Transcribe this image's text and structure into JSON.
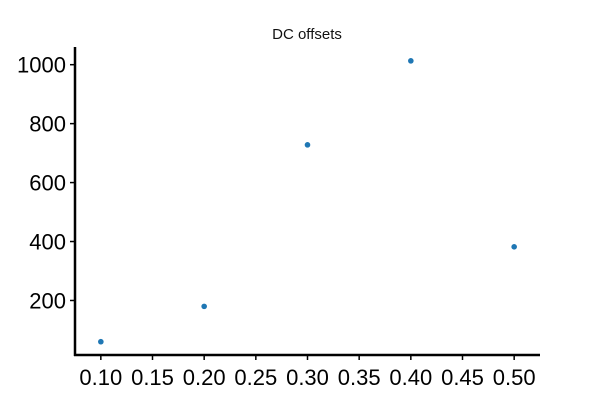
{
  "chart_data": {
    "type": "scatter",
    "title": "DC offsets",
    "xlabel": "",
    "ylabel": "",
    "x": [
      0.1,
      0.2,
      0.3,
      0.4,
      0.5
    ],
    "y": [
      60,
      180,
      728,
      1013,
      382
    ],
    "xlim": [
      0.075,
      0.525
    ],
    "ylim": [
      15,
      1060
    ],
    "xticks": [
      0.1,
      0.15,
      0.2,
      0.25,
      0.3,
      0.35,
      0.4,
      0.45,
      0.5
    ],
    "xtick_labels": [
      "0.10",
      "0.15",
      "0.20",
      "0.25",
      "0.30",
      "0.35",
      "0.40",
      "0.45",
      "0.50"
    ],
    "yticks": [
      200,
      400,
      600,
      800,
      1000
    ],
    "ytick_labels": [
      "200",
      "400",
      "600",
      "800",
      "1000"
    ],
    "grid": false,
    "marker_color": "#1f77b4",
    "axis_color": "#000000"
  }
}
